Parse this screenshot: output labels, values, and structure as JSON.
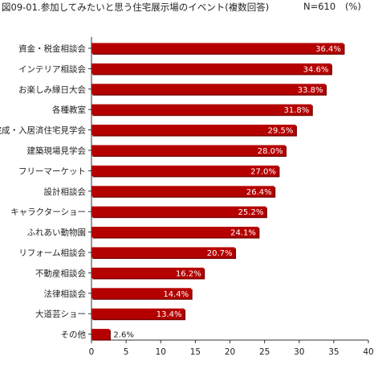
{
  "header": {
    "title": "図09-01.参加してみたいと思う住宅展示場のイベント(複数回答)",
    "n_label": "N=610",
    "unit_label": "(%)"
  },
  "colors": {
    "bar": "#b50000",
    "bar_shadow": "#7a0000",
    "axis": "#333333"
  },
  "chart_data": {
    "type": "bar",
    "orientation": "horizontal",
    "categories": [
      "資金・税金相談会",
      "インテリア相談会",
      "お楽しみ縁日大会",
      "各種教室",
      "完成・入居済住宅見学会",
      "建築現場見学会",
      "フリーマーケット",
      "設計相談会",
      "キャラクターショー",
      "ふれあい動物園",
      "リフォーム相談会",
      "不動産相談会",
      "法律相談会",
      "大道芸ショー",
      "その他"
    ],
    "values": [
      36.4,
      34.6,
      33.8,
      31.8,
      29.5,
      28.0,
      27.0,
      26.4,
      25.2,
      24.1,
      20.7,
      16.2,
      14.4,
      13.4,
      2.6
    ],
    "value_labels": [
      "36.4%",
      "34.6%",
      "33.8%",
      "31.8%",
      "29.5%",
      "28.0%",
      "27.0%",
      "26.4%",
      "25.2%",
      "24.1%",
      "20.7%",
      "16.2%",
      "14.4%",
      "13.4%",
      "2.6%"
    ],
    "xlim": [
      0,
      40
    ],
    "xticks": [
      "0",
      "5",
      "10",
      "15",
      "20",
      "25",
      "30",
      "35",
      "40"
    ],
    "grid": false
  }
}
